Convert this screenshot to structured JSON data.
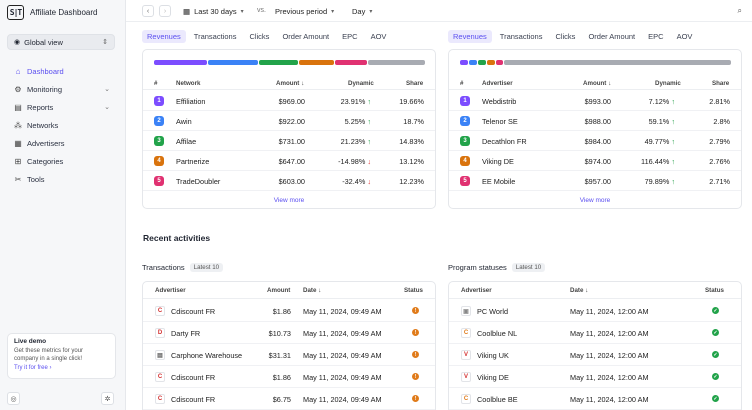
{
  "app": {
    "title": "Affiliate Dashboard",
    "logo": "S|T"
  },
  "sidebar": {
    "view_select": "Global view",
    "items": [
      {
        "label": "Dashboard",
        "icon": "home-icon",
        "active": true,
        "expandable": false
      },
      {
        "label": "Monitoring",
        "icon": "gear-icon",
        "active": false,
        "expandable": true
      },
      {
        "label": "Reports",
        "icon": "document-icon",
        "active": false,
        "expandable": true
      },
      {
        "label": "Networks",
        "icon": "network-icon",
        "active": false,
        "expandable": false
      },
      {
        "label": "Advertisers",
        "icon": "advertiser-icon",
        "active": false,
        "expandable": false
      },
      {
        "label": "Categories",
        "icon": "categories-icon",
        "active": false,
        "expandable": false
      },
      {
        "label": "Tools",
        "icon": "tools-icon",
        "active": false,
        "expandable": false
      }
    ],
    "demo": {
      "title": "Live demo",
      "desc": "Get these metrics for your company in a single click!",
      "link": "Try it for free"
    }
  },
  "topbar": {
    "range": "Last 30 days",
    "vs": "vs.",
    "compare": "Previous period",
    "granularity": "Day"
  },
  "tabs": [
    "Revenues",
    "Transactions",
    "Clicks",
    "Order Amount",
    "EPC",
    "AOV"
  ],
  "networks_table": {
    "headers": {
      "num": "#",
      "name": "Network",
      "amount": "Amount",
      "dynamic": "Dynamic",
      "share": "Share"
    },
    "rows": [
      {
        "n": "1",
        "name": "Effiliation",
        "amount": "$969.00",
        "dynamic": "23.91%",
        "trend": "up",
        "share": "19.66%"
      },
      {
        "n": "2",
        "name": "Awin",
        "amount": "$922.00",
        "dynamic": "5.25%",
        "trend": "up",
        "share": "18.7%"
      },
      {
        "n": "3",
        "name": "Affilae",
        "amount": "$731.00",
        "dynamic": "21.23%",
        "trend": "up",
        "share": "14.83%"
      },
      {
        "n": "4",
        "name": "Partnerize",
        "amount": "$647.00",
        "dynamic": "-14.98%",
        "trend": "down",
        "share": "13.12%"
      },
      {
        "n": "5",
        "name": "TradeDoubler",
        "amount": "$603.00",
        "dynamic": "-32.4%",
        "trend": "down",
        "share": "12.23%"
      }
    ],
    "view_more": "View more"
  },
  "advertisers_table": {
    "headers": {
      "num": "#",
      "name": "Advertiser",
      "amount": "Amount",
      "dynamic": "Dynamic",
      "share": "Share"
    },
    "rows": [
      {
        "n": "1",
        "name": "Webdistrib",
        "amount": "$993.00",
        "dynamic": "7.12%",
        "trend": "up",
        "share": "2.81%"
      },
      {
        "n": "2",
        "name": "Telenor SE",
        "amount": "$988.00",
        "dynamic": "59.1%",
        "trend": "up",
        "share": "2.8%"
      },
      {
        "n": "3",
        "name": "Decathlon FR",
        "amount": "$984.00",
        "dynamic": "49.77%",
        "trend": "up",
        "share": "2.79%"
      },
      {
        "n": "4",
        "name": "Viking DE",
        "amount": "$974.00",
        "dynamic": "116.44%",
        "trend": "up",
        "share": "2.76%"
      },
      {
        "n": "5",
        "name": "EE Mobile",
        "amount": "$957.00",
        "dynamic": "79.89%",
        "trend": "up",
        "share": "2.71%"
      }
    ],
    "view_more": "View more"
  },
  "badge_colors": [
    "#7c4dff",
    "#3b82f6",
    "#22a34a",
    "#d9730d",
    "#e03171"
  ],
  "recent": {
    "title": "Recent activities",
    "transactions": {
      "title": "Transactions",
      "pill": "Latest 10",
      "headers": {
        "advertiser": "Advertiser",
        "amount": "Amount",
        "date": "Date",
        "status": "Status"
      },
      "rows": [
        {
          "logo": "C",
          "color": "#d32f2f",
          "name": "Cdiscount FR",
          "amount": "$1.86",
          "date": "May 11, 2024, 09:49 AM"
        },
        {
          "logo": "D",
          "color": "#d32f2f",
          "name": "Darty FR",
          "amount": "$10.73",
          "date": "May 11, 2024, 09:49 AM"
        },
        {
          "logo": "▤",
          "color": "#666666",
          "name": "Carphone Warehouse",
          "amount": "$31.31",
          "date": "May 11, 2024, 09:49 AM"
        },
        {
          "logo": "C",
          "color": "#d32f2f",
          "name": "Cdiscount FR",
          "amount": "$1.86",
          "date": "May 11, 2024, 09:49 AM"
        },
        {
          "logo": "C",
          "color": "#d32f2f",
          "name": "Cdiscount FR",
          "amount": "$6.75",
          "date": "May 11, 2024, 09:49 AM"
        }
      ]
    },
    "statuses": {
      "title": "Program statuses",
      "pill": "Latest 10",
      "headers": {
        "advertiser": "Advertiser",
        "date": "Date",
        "status": "Status"
      },
      "rows": [
        {
          "logo": "▣",
          "color": "#888888",
          "name": "PC World",
          "date": "May 11, 2024, 12:00 AM"
        },
        {
          "logo": "C",
          "color": "#e07b1a",
          "name": "Coolblue NL",
          "date": "May 11, 2024, 12:00 AM"
        },
        {
          "logo": "V",
          "color": "#d32f2f",
          "name": "Viking UK",
          "date": "May 11, 2024, 12:00 AM"
        },
        {
          "logo": "V",
          "color": "#d32f2f",
          "name": "Viking DE",
          "date": "May 11, 2024, 12:00 AM"
        },
        {
          "logo": "C",
          "color": "#e07b1a",
          "name": "Coolblue BE",
          "date": "May 11, 2024, 12:00 AM"
        }
      ]
    }
  }
}
